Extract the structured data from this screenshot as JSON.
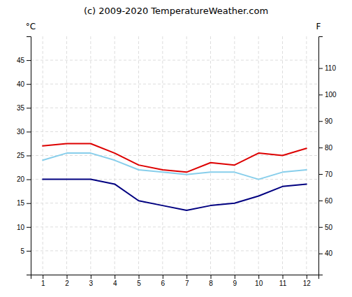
{
  "chart_data": {
    "type": "line",
    "title": "(c) 2009-2020 TemperatureWeather.com",
    "y_label": "°C",
    "y2_label": "F",
    "x": [
      1,
      2,
      3,
      4,
      5,
      6,
      7,
      8,
      9,
      10,
      11,
      12
    ],
    "series": [
      {
        "color": "#dd0000",
        "values": [
          27,
          27.5,
          27.5,
          25.5,
          23,
          22,
          21.5,
          23.5,
          23,
          25.5,
          25,
          26.5
        ]
      },
      {
        "color": "#000080",
        "values": [
          20,
          20,
          20,
          19,
          15.5,
          14.5,
          13.5,
          14.5,
          15,
          16.5,
          18.5,
          19
        ]
      },
      {
        "color": "#87ceeb",
        "values": [
          24,
          25.5,
          25.5,
          24,
          22,
          21.5,
          21,
          21.5,
          21.5,
          20,
          21.5,
          22
        ]
      }
    ],
    "xlim": [
      0.5,
      12.5
    ],
    "xticks": [
      1,
      2,
      3,
      4,
      5,
      6,
      7,
      8,
      9,
      10,
      11,
      12
    ],
    "ylim": [
      0,
      50
    ],
    "yticks": [
      5,
      10,
      15,
      20,
      25,
      30,
      35,
      40,
      45
    ],
    "y2lim": [
      32,
      122
    ],
    "y2ticks": [
      40,
      50,
      60,
      70,
      80,
      90,
      100,
      110
    ],
    "grid": true
  }
}
